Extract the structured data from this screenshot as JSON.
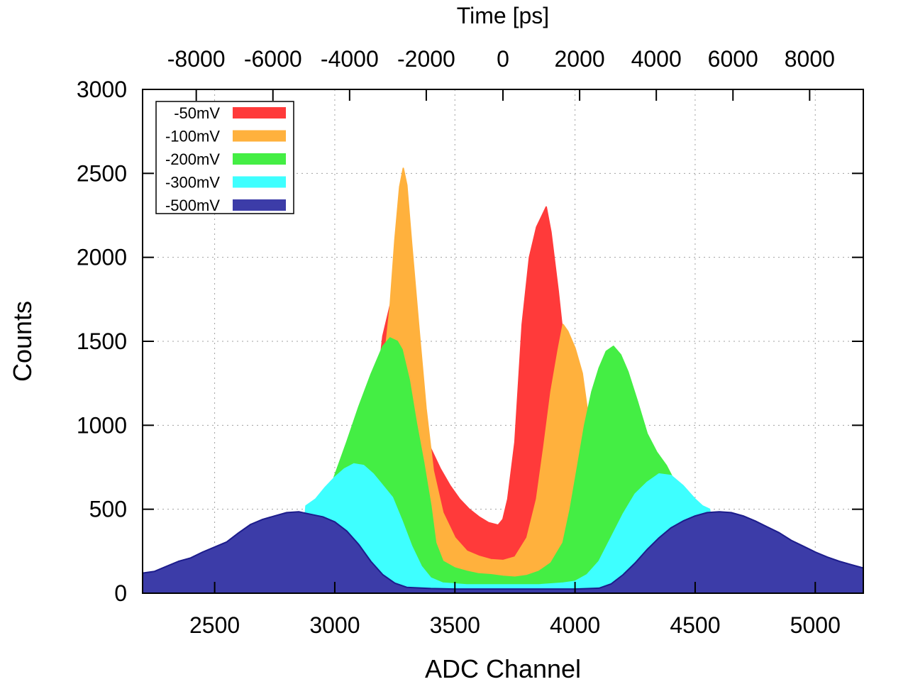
{
  "chart_data": {
    "type": "area",
    "title": "",
    "xlabel": "ADC Channel",
    "ylabel": "Counts",
    "x2label": "Time [ps]",
    "xlim": [
      2200,
      5200
    ],
    "ylim": [
      0,
      3000
    ],
    "x2lim": [
      -9400,
      9400
    ],
    "xticks": [
      2500,
      3000,
      3500,
      4000,
      4500,
      5000
    ],
    "yticks": [
      0,
      500,
      1000,
      1500,
      2000,
      2500,
      3000
    ],
    "x2ticks": [
      -8000,
      -6000,
      -4000,
      -2000,
      0,
      2000,
      4000,
      6000,
      8000
    ],
    "grid": true,
    "legend_position": "top-left",
    "series": [
      {
        "name": "-50mV",
        "color": "#ff3a3a",
        "points": [
          [
            3000,
            0
          ],
          [
            3050,
            50
          ],
          [
            3100,
            350
          ],
          [
            3150,
            900
          ],
          [
            3200,
            1530
          ],
          [
            3230,
            1710
          ],
          [
            3260,
            1870
          ],
          [
            3285,
            1970
          ],
          [
            3310,
            1780
          ],
          [
            3340,
            1350
          ],
          [
            3370,
            1020
          ],
          [
            3400,
            860
          ],
          [
            3440,
            740
          ],
          [
            3480,
            640
          ],
          [
            3520,
            560
          ],
          [
            3560,
            500
          ],
          [
            3600,
            455
          ],
          [
            3640,
            420
          ],
          [
            3680,
            405
          ],
          [
            3700,
            440
          ],
          [
            3720,
            560
          ],
          [
            3750,
            900
          ],
          [
            3780,
            1600
          ],
          [
            3810,
            2000
          ],
          [
            3840,
            2180
          ],
          [
            3860,
            2240
          ],
          [
            3880,
            2300
          ],
          [
            3900,
            2150
          ],
          [
            3930,
            1800
          ],
          [
            3960,
            1400
          ],
          [
            4000,
            1000
          ],
          [
            4050,
            700
          ],
          [
            4100,
            420
          ],
          [
            4150,
            220
          ],
          [
            4200,
            100
          ],
          [
            4300,
            20
          ],
          [
            4400,
            0
          ]
        ]
      },
      {
        "name": "-100mV",
        "color": "#ffb13d",
        "points": [
          [
            3000,
            0
          ],
          [
            3050,
            40
          ],
          [
            3100,
            300
          ],
          [
            3150,
            800
          ],
          [
            3200,
            1300
          ],
          [
            3230,
            1700
          ],
          [
            3250,
            2100
          ],
          [
            3270,
            2420
          ],
          [
            3285,
            2530
          ],
          [
            3300,
            2430
          ],
          [
            3320,
            2080
          ],
          [
            3350,
            1580
          ],
          [
            3380,
            1100
          ],
          [
            3410,
            730
          ],
          [
            3450,
            480
          ],
          [
            3500,
            330
          ],
          [
            3550,
            250
          ],
          [
            3600,
            220
          ],
          [
            3650,
            200
          ],
          [
            3700,
            195
          ],
          [
            3750,
            215
          ],
          [
            3800,
            330
          ],
          [
            3840,
            560
          ],
          [
            3870,
            870
          ],
          [
            3900,
            1200
          ],
          [
            3930,
            1450
          ],
          [
            3950,
            1600
          ],
          [
            3970,
            1560
          ],
          [
            4000,
            1460
          ],
          [
            4030,
            1310
          ],
          [
            4060,
            1000
          ],
          [
            4100,
            720
          ],
          [
            4150,
            450
          ],
          [
            4200,
            250
          ],
          [
            4300,
            60
          ],
          [
            4400,
            0
          ]
        ]
      },
      {
        "name": "-200mV",
        "color": "#44ee44",
        "points": [
          [
            2850,
            0
          ],
          [
            2880,
            80
          ],
          [
            2920,
            300
          ],
          [
            2960,
            520
          ],
          [
            3000,
            700
          ],
          [
            3050,
            900
          ],
          [
            3100,
            1110
          ],
          [
            3150,
            1300
          ],
          [
            3200,
            1470
          ],
          [
            3230,
            1520
          ],
          [
            3260,
            1500
          ],
          [
            3280,
            1450
          ],
          [
            3310,
            1270
          ],
          [
            3340,
            1010
          ],
          [
            3370,
            780
          ],
          [
            3400,
            520
          ],
          [
            3420,
            300
          ],
          [
            3450,
            190
          ],
          [
            3500,
            150
          ],
          [
            3550,
            130
          ],
          [
            3600,
            115
          ],
          [
            3650,
            110
          ],
          [
            3700,
            100
          ],
          [
            3750,
            95
          ],
          [
            3800,
            105
          ],
          [
            3850,
            130
          ],
          [
            3900,
            180
          ],
          [
            3950,
            300
          ],
          [
            3980,
            500
          ],
          [
            4010,
            750
          ],
          [
            4040,
            1000
          ],
          [
            4070,
            1200
          ],
          [
            4100,
            1340
          ],
          [
            4130,
            1440
          ],
          [
            4160,
            1470
          ],
          [
            4190,
            1420
          ],
          [
            4220,
            1320
          ],
          [
            4260,
            1140
          ],
          [
            4300,
            950
          ],
          [
            4340,
            840
          ],
          [
            4380,
            760
          ],
          [
            4420,
            650
          ],
          [
            4460,
            560
          ],
          [
            4500,
            450
          ],
          [
            4540,
            300
          ],
          [
            4580,
            130
          ],
          [
            4620,
            0
          ]
        ]
      },
      {
        "name": "-300mV",
        "color": "#3effff",
        "points": [
          [
            2850,
            0
          ],
          [
            2880,
            520
          ],
          [
            2920,
            560
          ],
          [
            2960,
            630
          ],
          [
            3000,
            690
          ],
          [
            3040,
            740
          ],
          [
            3080,
            770
          ],
          [
            3120,
            760
          ],
          [
            3160,
            710
          ],
          [
            3200,
            640
          ],
          [
            3240,
            570
          ],
          [
            3280,
            430
          ],
          [
            3320,
            280
          ],
          [
            3360,
            160
          ],
          [
            3400,
            90
          ],
          [
            3450,
            60
          ],
          [
            3500,
            55
          ],
          [
            3550,
            50
          ],
          [
            3600,
            50
          ],
          [
            3650,
            50
          ],
          [
            3700,
            50
          ],
          [
            3750,
            50
          ],
          [
            3800,
            50
          ],
          [
            3850,
            50
          ],
          [
            3900,
            55
          ],
          [
            3950,
            60
          ],
          [
            4000,
            70
          ],
          [
            4050,
            110
          ],
          [
            4100,
            190
          ],
          [
            4150,
            330
          ],
          [
            4200,
            470
          ],
          [
            4250,
            590
          ],
          [
            4300,
            660
          ],
          [
            4350,
            710
          ],
          [
            4400,
            700
          ],
          [
            4450,
            640
          ],
          [
            4500,
            560
          ],
          [
            4530,
            520
          ],
          [
            4560,
            500
          ],
          [
            4600,
            0
          ]
        ]
      },
      {
        "name": "-500mV",
        "color": "#3c3ca8",
        "edge": "#1c1c8c",
        "points": [
          [
            2200,
            120
          ],
          [
            2250,
            130
          ],
          [
            2300,
            160
          ],
          [
            2350,
            190
          ],
          [
            2400,
            210
          ],
          [
            2450,
            245
          ],
          [
            2500,
            275
          ],
          [
            2550,
            305
          ],
          [
            2600,
            360
          ],
          [
            2650,
            410
          ],
          [
            2700,
            440
          ],
          [
            2750,
            460
          ],
          [
            2800,
            480
          ],
          [
            2850,
            485
          ],
          [
            2900,
            470
          ],
          [
            2950,
            455
          ],
          [
            3000,
            425
          ],
          [
            3050,
            370
          ],
          [
            3100,
            290
          ],
          [
            3150,
            190
          ],
          [
            3200,
            110
          ],
          [
            3250,
            60
          ],
          [
            3300,
            35
          ],
          [
            3400,
            28
          ],
          [
            3500,
            25
          ],
          [
            3600,
            25
          ],
          [
            3700,
            25
          ],
          [
            3800,
            25
          ],
          [
            3900,
            25
          ],
          [
            4000,
            25
          ],
          [
            4100,
            30
          ],
          [
            4150,
            55
          ],
          [
            4200,
            110
          ],
          [
            4250,
            180
          ],
          [
            4300,
            260
          ],
          [
            4350,
            330
          ],
          [
            4400,
            390
          ],
          [
            4450,
            430
          ],
          [
            4500,
            460
          ],
          [
            4550,
            480
          ],
          [
            4600,
            485
          ],
          [
            4650,
            480
          ],
          [
            4700,
            460
          ],
          [
            4750,
            430
          ],
          [
            4800,
            395
          ],
          [
            4850,
            360
          ],
          [
            4900,
            315
          ],
          [
            4950,
            280
          ],
          [
            5000,
            245
          ],
          [
            5050,
            215
          ],
          [
            5100,
            190
          ],
          [
            5150,
            170
          ],
          [
            5200,
            150
          ]
        ]
      }
    ]
  }
}
